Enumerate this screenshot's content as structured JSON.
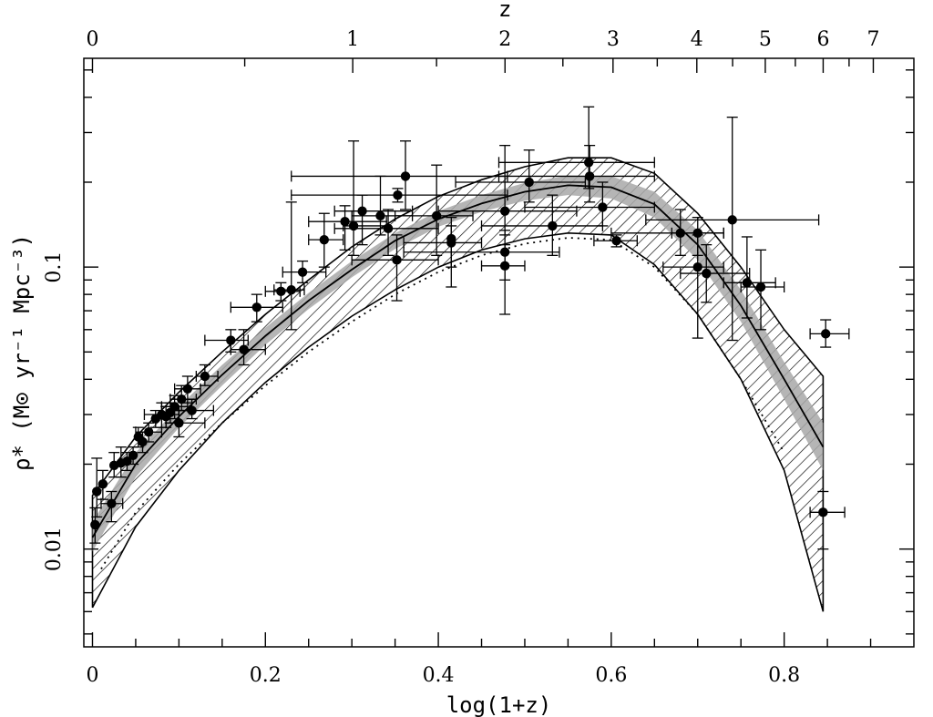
{
  "chart_data": {
    "type": "scatter",
    "title": "",
    "xlabel": "log(1+z)",
    "ylabel": "ρ̇* (M⊙ yr⁻¹ Mpc⁻³)",
    "top_axis_label": "z",
    "xlim": [
      -0.01,
      0.95
    ],
    "ylim": [
      0.0045,
      0.55
    ],
    "yscale": "log",
    "grid": false,
    "legend": "none",
    "x_ticks": [
      {
        "value": 0,
        "label": "0"
      },
      {
        "value": 0.2,
        "label": "0.2"
      },
      {
        "value": 0.4,
        "label": "0.4"
      },
      {
        "value": 0.6,
        "label": "0.6"
      },
      {
        "value": 0.8,
        "label": "0.8"
      }
    ],
    "y_ticks": [
      {
        "value": 0.01,
        "label": "0.01"
      },
      {
        "value": 0.1,
        "label": "0.1"
      }
    ],
    "top_ticks": [
      {
        "z": 0,
        "label": "0"
      },
      {
        "z": 1,
        "label": "1"
      },
      {
        "z": 2,
        "label": "2"
      },
      {
        "z": 3,
        "label": "3"
      },
      {
        "z": 4,
        "label": "4"
      },
      {
        "z": 5,
        "label": "5"
      },
      {
        "z": 6,
        "label": "6"
      },
      {
        "z": 7,
        "label": "7"
      }
    ],
    "points": [
      {
        "x": 0.003,
        "y": 0.0122,
        "ylo": 0.0105,
        "yhi": 0.014
      },
      {
        "x": 0.005,
        "y": 0.016,
        "ylo": 0.013,
        "yhi": 0.021
      },
      {
        "x": 0.012,
        "y": 0.017,
        "ylo": 0.015,
        "yhi": 0.019
      },
      {
        "x": 0.022,
        "y": 0.0145,
        "ylo": 0.0125,
        "yhi": 0.016,
        "xlo": 0.01,
        "xhi": 0.035
      },
      {
        "x": 0.025,
        "y": 0.0198,
        "ylo": 0.018,
        "yhi": 0.022
      },
      {
        "x": 0.033,
        "y": 0.0202,
        "ylo": 0.018,
        "yhi": 0.023
      },
      {
        "x": 0.04,
        "y": 0.0205,
        "ylo": 0.019,
        "yhi": 0.022
      },
      {
        "x": 0.047,
        "y": 0.0215,
        "ylo": 0.02,
        "yhi": 0.023
      },
      {
        "x": 0.053,
        "y": 0.025,
        "ylo": 0.023,
        "yhi": 0.027
      },
      {
        "x": 0.058,
        "y": 0.024,
        "ylo": 0.022,
        "yhi": 0.026
      },
      {
        "x": 0.065,
        "y": 0.026,
        "ylo": 0.024,
        "yhi": 0.028,
        "xlo": 0.05,
        "xhi": 0.08
      },
      {
        "x": 0.073,
        "y": 0.029,
        "ylo": 0.027,
        "yhi": 0.031
      },
      {
        "x": 0.08,
        "y": 0.03,
        "ylo": 0.027,
        "yhi": 0.033,
        "xlo": 0.06,
        "xhi": 0.1
      },
      {
        "x": 0.085,
        "y": 0.0295,
        "ylo": 0.027,
        "yhi": 0.032
      },
      {
        "x": 0.09,
        "y": 0.0305,
        "ylo": 0.028,
        "yhi": 0.033
      },
      {
        "x": 0.095,
        "y": 0.032,
        "ylo": 0.029,
        "yhi": 0.035,
        "xlo": 0.08,
        "xhi": 0.11
      },
      {
        "x": 0.1,
        "y": 0.028,
        "ylo": 0.025,
        "yhi": 0.031,
        "xlo": 0.085,
        "xhi": 0.13
      },
      {
        "x": 0.103,
        "y": 0.034,
        "ylo": 0.031,
        "yhi": 0.038,
        "xlo": 0.09,
        "xhi": 0.12
      },
      {
        "x": 0.11,
        "y": 0.037,
        "ylo": 0.033,
        "yhi": 0.041,
        "xlo": 0.095,
        "xhi": 0.125
      },
      {
        "x": 0.115,
        "y": 0.031,
        "ylo": 0.029,
        "yhi": 0.034,
        "xlo": 0.1,
        "xhi": 0.14
      },
      {
        "x": 0.13,
        "y": 0.041,
        "ylo": 0.038,
        "yhi": 0.045,
        "xlo": 0.12,
        "xhi": 0.145
      },
      {
        "x": 0.16,
        "y": 0.055,
        "ylo": 0.05,
        "yhi": 0.06,
        "xlo": 0.13,
        "xhi": 0.18
      },
      {
        "x": 0.175,
        "y": 0.051,
        "ylo": 0.045,
        "yhi": 0.06,
        "xlo": 0.16,
        "xhi": 0.2
      },
      {
        "x": 0.19,
        "y": 0.072,
        "ylo": 0.064,
        "yhi": 0.08,
        "xlo": 0.16,
        "xhi": 0.22
      },
      {
        "x": 0.218,
        "y": 0.082,
        "ylo": 0.076,
        "yhi": 0.088,
        "xlo": 0.2,
        "xhi": 0.24
      },
      {
        "x": 0.23,
        "y": 0.083,
        "ylo": 0.06,
        "yhi": 0.17,
        "xlo": 0.21,
        "xhi": 0.245
      },
      {
        "x": 0.243,
        "y": 0.096,
        "ylo": 0.088,
        "yhi": 0.105,
        "xlo": 0.22,
        "xhi": 0.27
      },
      {
        "x": 0.268,
        "y": 0.125,
        "ylo": 0.1,
        "yhi": 0.155,
        "xlo": 0.25,
        "xhi": 0.29
      },
      {
        "x": 0.292,
        "y": 0.145,
        "ylo": 0.115,
        "yhi": 0.165,
        "xlo": 0.25,
        "xhi": 0.34
      },
      {
        "x": 0.302,
        "y": 0.14,
        "ylo": 0.11,
        "yhi": 0.28,
        "xlo": 0.29,
        "xhi": 0.34
      },
      {
        "x": 0.312,
        "y": 0.158,
        "ylo": 0.12,
        "yhi": 0.18,
        "xlo": 0.28,
        "xhi": 0.37
      },
      {
        "x": 0.333,
        "y": 0.152,
        "ylo": 0.13,
        "yhi": 0.21,
        "xlo": 0.3,
        "xhi": 0.37
      },
      {
        "x": 0.342,
        "y": 0.137,
        "ylo": 0.11,
        "yhi": 0.16,
        "xlo": 0.28,
        "xhi": 0.4
      },
      {
        "x": 0.352,
        "y": 0.106,
        "ylo": 0.076,
        "yhi": 0.13,
        "xlo": 0.3,
        "xhi": 0.4
      },
      {
        "x": 0.353,
        "y": 0.18,
        "ylo": 0.17,
        "yhi": 0.19,
        "xlo": 0.23,
        "xhi": 0.48
      },
      {
        "x": 0.362,
        "y": 0.21,
        "ylo": 0.16,
        "yhi": 0.28,
        "xlo": 0.23,
        "xhi": 0.48
      },
      {
        "x": 0.398,
        "y": 0.152,
        "ylo": 0.11,
        "yhi": 0.23,
        "xlo": 0.35,
        "xhi": 0.44
      },
      {
        "x": 0.415,
        "y": 0.122,
        "ylo": 0.085,
        "yhi": 0.14,
        "xlo": 0.36,
        "xhi": 0.45
      },
      {
        "x": 0.415,
        "y": 0.126,
        "ylo": 0.1,
        "yhi": 0.15
      },
      {
        "x": 0.477,
        "y": 0.158,
        "ylo": 0.13,
        "yhi": 0.27,
        "xlo": 0.4,
        "xhi": 0.56
      },
      {
        "x": 0.477,
        "y": 0.113,
        "ylo": 0.09,
        "yhi": 0.135,
        "xlo": 0.36,
        "xhi": 0.54
      },
      {
        "x": 0.477,
        "y": 0.101,
        "ylo": 0.068,
        "yhi": 0.12,
        "xlo": 0.45,
        "xhi": 0.5
      },
      {
        "x": 0.505,
        "y": 0.2,
        "ylo": 0.17,
        "yhi": 0.26,
        "xlo": 0.42,
        "xhi": 0.57
      },
      {
        "x": 0.532,
        "y": 0.14,
        "ylo": 0.11,
        "yhi": 0.18,
        "xlo": 0.45,
        "xhi": 0.59
      },
      {
        "x": 0.574,
        "y": 0.235,
        "ylo": 0.19,
        "yhi": 0.37,
        "xlo": 0.47,
        "xhi": 0.65
      },
      {
        "x": 0.575,
        "y": 0.21,
        "ylo": 0.17,
        "yhi": 0.27,
        "xlo": 0.47,
        "xhi": 0.65
      },
      {
        "x": 0.59,
        "y": 0.163,
        "ylo": 0.14,
        "yhi": 0.2,
        "xlo": 0.5,
        "xhi": 0.65
      },
      {
        "x": 0.606,
        "y": 0.124,
        "ylo": 0.118,
        "yhi": 0.13,
        "xlo": 0.58,
        "xhi": 0.63
      },
      {
        "x": 0.68,
        "y": 0.132,
        "ylo": 0.11,
        "yhi": 0.16,
        "xlo": 0.6,
        "xhi": 0.73
      },
      {
        "x": 0.7,
        "y": 0.132,
        "ylo": 0.11,
        "yhi": 0.15,
        "xlo": 0.67,
        "xhi": 0.73
      },
      {
        "x": 0.7,
        "y": 0.1,
        "ylo": 0.056,
        "yhi": 0.13,
        "xlo": 0.66,
        "xhi": 0.73
      },
      {
        "x": 0.71,
        "y": 0.095,
        "ylo": 0.075,
        "yhi": 0.12,
        "xlo": 0.68,
        "xhi": 0.76
      },
      {
        "x": 0.74,
        "y": 0.147,
        "ylo": 0.055,
        "yhi": 0.34,
        "xlo": 0.64,
        "xhi": 0.84
      },
      {
        "x": 0.757,
        "y": 0.088,
        "ylo": 0.066,
        "yhi": 0.128,
        "xlo": 0.73,
        "xhi": 0.79
      },
      {
        "x": 0.773,
        "y": 0.085,
        "ylo": 0.06,
        "yhi": 0.115,
        "xlo": 0.75,
        "xhi": 0.8
      },
      {
        "x": 0.845,
        "y": 0.0135,
        "ylo": 0.01,
        "yhi": 0.016,
        "xlo": 0.83,
        "xhi": 0.87
      },
      {
        "x": 0.848,
        "y": 0.058,
        "ylo": 0.052,
        "yhi": 0.065,
        "xlo": 0.83,
        "xhi": 0.875
      }
    ],
    "bands": {
      "hatched_outer": {
        "x": [
          0,
          0.05,
          0.1,
          0.15,
          0.2,
          0.25,
          0.3,
          0.35,
          0.4,
          0.45,
          0.5,
          0.55,
          0.6,
          0.65,
          0.7,
          0.75,
          0.8,
          0.845
        ],
        "upper": [
          0.0155,
          0.025,
          0.036,
          0.05,
          0.068,
          0.09,
          0.118,
          0.148,
          0.178,
          0.204,
          0.227,
          0.244,
          0.244,
          0.215,
          0.155,
          0.1,
          0.06,
          0.041
        ],
        "lower": [
          0.0062,
          0.012,
          0.019,
          0.028,
          0.039,
          0.052,
          0.067,
          0.083,
          0.1,
          0.115,
          0.126,
          0.132,
          0.13,
          0.102,
          0.068,
          0.04,
          0.019,
          0.006
        ]
      },
      "gray_inner": {
        "x": [
          0,
          0.05,
          0.1,
          0.15,
          0.2,
          0.25,
          0.3,
          0.35,
          0.4,
          0.45,
          0.5,
          0.55,
          0.6,
          0.65,
          0.7,
          0.75,
          0.8,
          0.845
        ],
        "upper": [
          0.0125,
          0.022,
          0.032,
          0.045,
          0.061,
          0.081,
          0.105,
          0.132,
          0.158,
          0.18,
          0.199,
          0.211,
          0.21,
          0.185,
          0.135,
          0.083,
          0.046,
          0.028
        ],
        "lower": [
          0.0098,
          0.018,
          0.027,
          0.038,
          0.053,
          0.071,
          0.092,
          0.116,
          0.139,
          0.157,
          0.172,
          0.18,
          0.175,
          0.15,
          0.106,
          0.064,
          0.034,
          0.019
        ]
      },
      "central_curve": {
        "x": [
          0,
          0.05,
          0.1,
          0.15,
          0.2,
          0.25,
          0.3,
          0.35,
          0.4,
          0.45,
          0.5,
          0.55,
          0.6,
          0.65,
          0.7,
          0.75,
          0.8,
          0.845
        ],
        "y": [
          0.011,
          0.02,
          0.0295,
          0.0415,
          0.057,
          0.076,
          0.098,
          0.124,
          0.148,
          0.168,
          0.185,
          0.195,
          0.192,
          0.167,
          0.12,
          0.073,
          0.04,
          0.023
        ]
      },
      "dotted_curve": {
        "x": [
          0.01,
          0.05,
          0.1,
          0.15,
          0.2,
          0.25,
          0.3,
          0.35,
          0.4,
          0.45,
          0.5,
          0.55,
          0.6,
          0.65,
          0.7,
          0.75,
          0.8
        ],
        "y": [
          0.0085,
          0.0135,
          0.02,
          0.028,
          0.038,
          0.05,
          0.064,
          0.08,
          0.096,
          0.11,
          0.121,
          0.127,
          0.125,
          0.1,
          0.068,
          0.04,
          0.022
        ]
      }
    }
  }
}
